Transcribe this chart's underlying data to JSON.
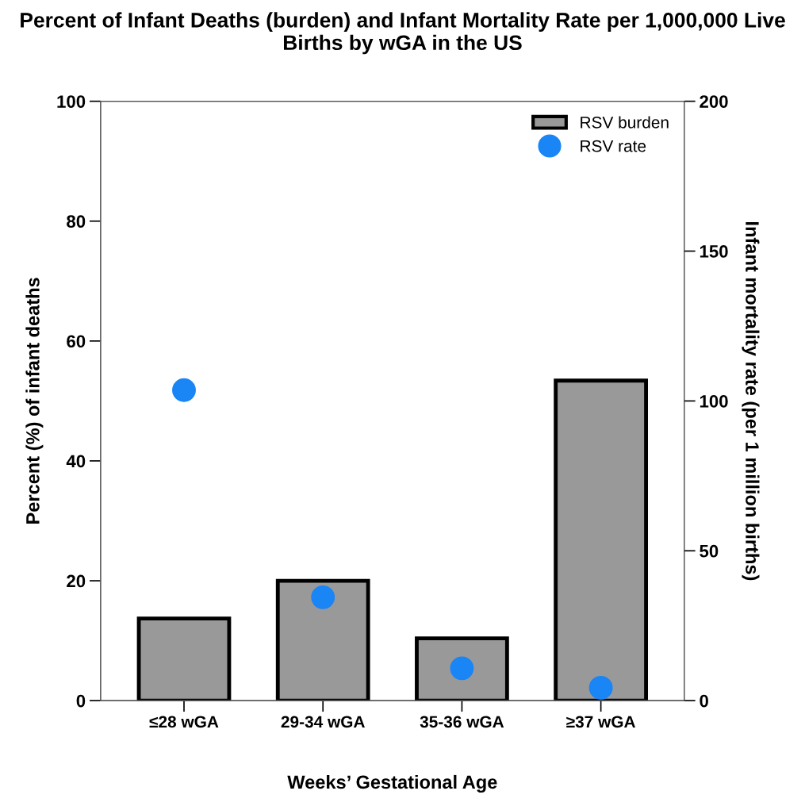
{
  "chart_data": {
    "type": "bar",
    "title": "Percent of Infant Deaths (burden) and Infant Mortality Rate per 1,000,000 Live Births by wGA in the US",
    "xlabel": "Weeks’ Gestational Age",
    "ylabel": "Percent (%) of infant deaths",
    "y2label": "Infant mortality rate (per 1 million births)",
    "categories": [
      "≤28 wGA",
      "29-34 wGA",
      "35-36 wGA",
      "≥37 wGA"
    ],
    "series": [
      {
        "name": "RSV burden",
        "color": "#999999",
        "values": [
          13.7,
          20.0,
          10.4,
          53.4
        ]
      },
      {
        "name": "RSV rate",
        "type": "scatter",
        "axis": "y2",
        "color": "#1a85f5",
        "marker": "circle",
        "values": [
          103.6,
          34.5,
          10.8,
          4.3
        ]
      }
    ],
    "ylim": [
      0,
      100
    ],
    "yticks": [
      0,
      20,
      40,
      60,
      80,
      100
    ],
    "y2lim": [
      0,
      200
    ],
    "y2ticks": [
      0,
      50,
      100,
      150,
      200
    ],
    "grid": false,
    "legend": "top right"
  }
}
